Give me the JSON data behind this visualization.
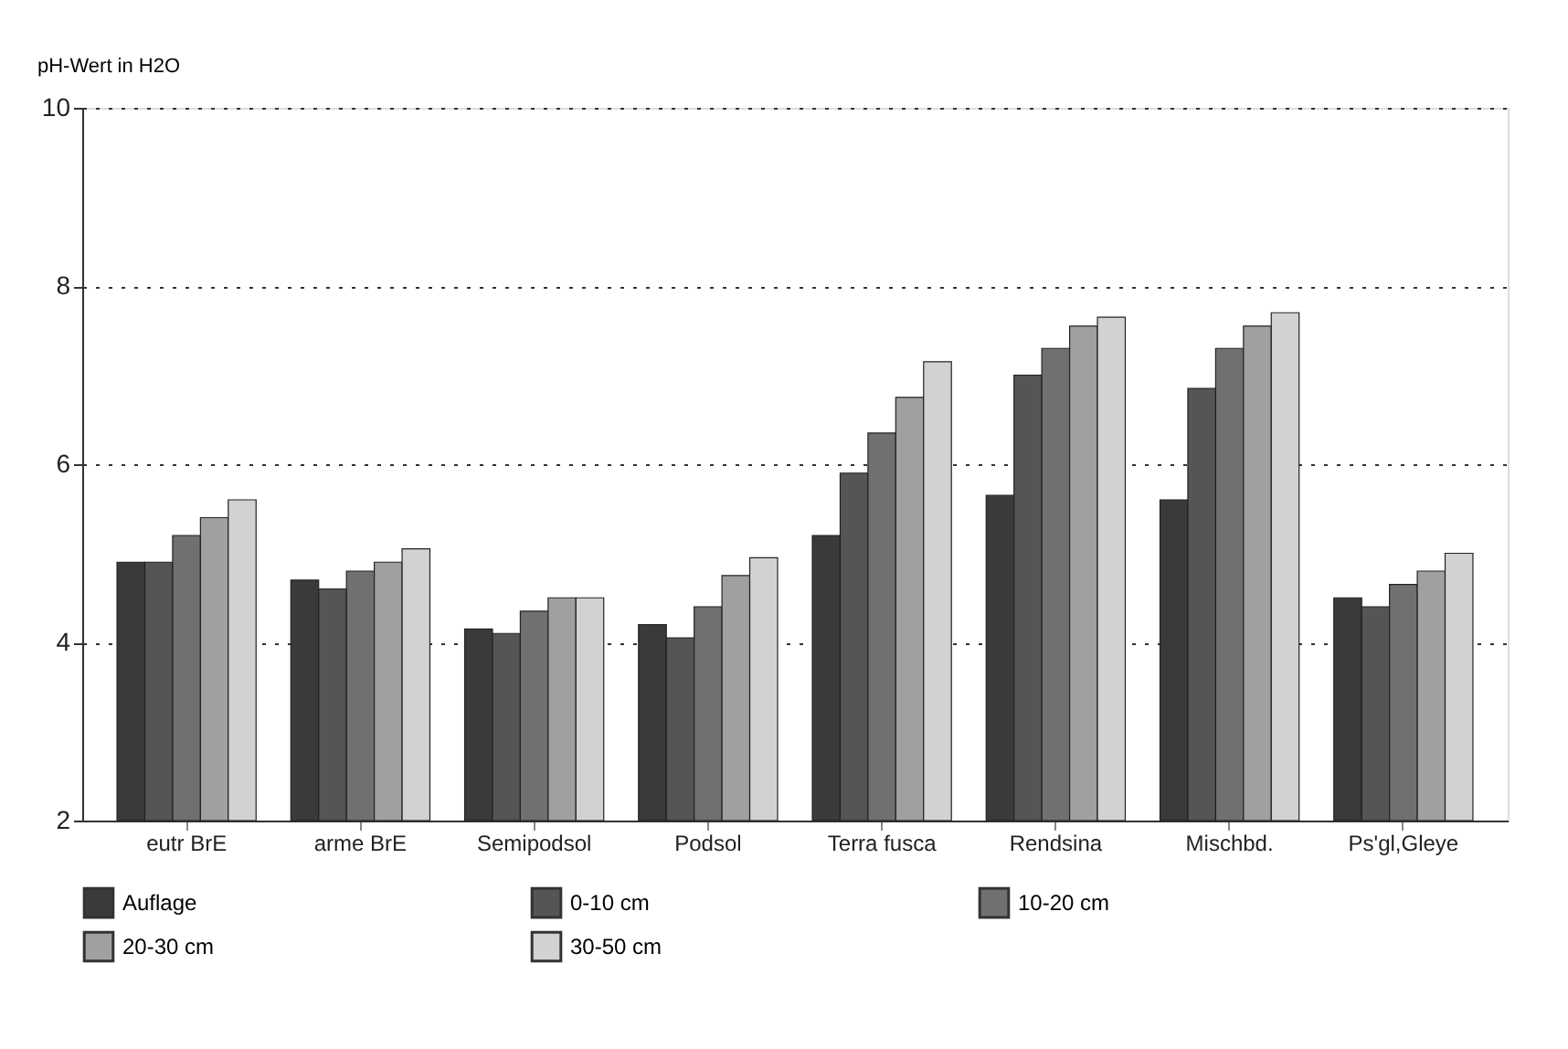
{
  "chart_data": {
    "type": "bar",
    "ylabel": "pH-Wert in H2O",
    "categories": [
      "eutr BrE",
      "arme BrE",
      "Semipodsol",
      "Podsol",
      "Terra fusca",
      "Rendsina",
      "Mischbd.",
      "Ps'gl,Gleye"
    ],
    "series": [
      {
        "name": "Auflage",
        "color": "#3a3a3a",
        "values": [
          4.9,
          4.7,
          4.15,
          4.2,
          5.2,
          5.65,
          5.6,
          4.5
        ]
      },
      {
        "name": "0-10 cm",
        "color": "#555555",
        "values": [
          4.9,
          4.6,
          4.1,
          4.05,
          5.9,
          7.0,
          6.85,
          4.4
        ]
      },
      {
        "name": "10-20 cm",
        "color": "#707070",
        "values": [
          5.2,
          4.8,
          4.35,
          4.4,
          6.35,
          7.3,
          7.3,
          4.65
        ]
      },
      {
        "name": "20-30 cm",
        "color": "#a0a0a0",
        "values": [
          5.4,
          4.9,
          4.5,
          4.75,
          6.75,
          7.55,
          7.55,
          4.8
        ]
      },
      {
        "name": "30-50 cm",
        "color": "#d2d2d2",
        "values": [
          5.6,
          5.05,
          4.5,
          4.95,
          7.15,
          7.65,
          7.7,
          5.0
        ]
      }
    ],
    "ylim": [
      2,
      10
    ],
    "yticks": [
      2,
      4,
      6,
      8,
      10
    ],
    "grid": "y",
    "legend": "bottom"
  }
}
